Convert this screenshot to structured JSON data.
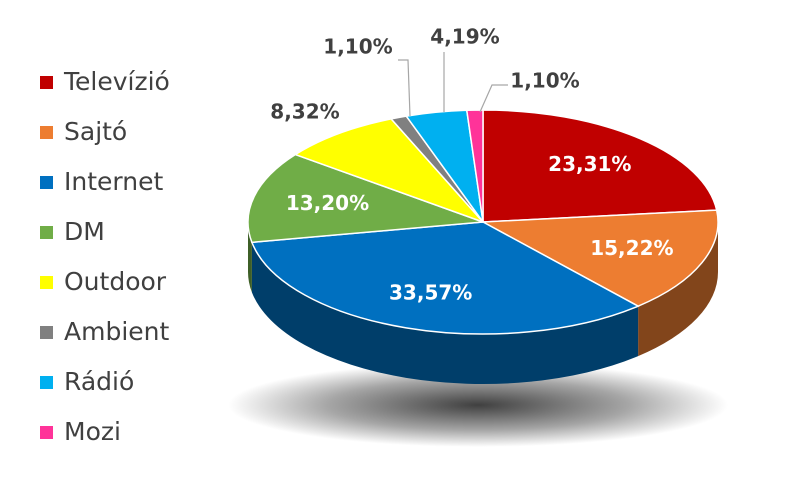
{
  "chart_data": {
    "type": "pie",
    "categories": [
      "Televízió",
      "Sajtó",
      "Internet",
      "DM",
      "Outdoor",
      "Ambient",
      "Rádió",
      "Mozi"
    ],
    "values": [
      23.31,
      15.22,
      33.57,
      13.2,
      8.32,
      1.1,
      4.19,
      1.1
    ],
    "value_labels": [
      "23,31%",
      "15,22%",
      "33,57%",
      "13,20%",
      "8,32%",
      "1,10%",
      "4,19%",
      "1,10%"
    ],
    "colors": [
      "#c00000",
      "#ed7d31",
      "#0070c0",
      "#70ad47",
      "#ffff00",
      "#808080",
      "#00b0f0",
      "#ff3399"
    ],
    "legend": "left"
  }
}
